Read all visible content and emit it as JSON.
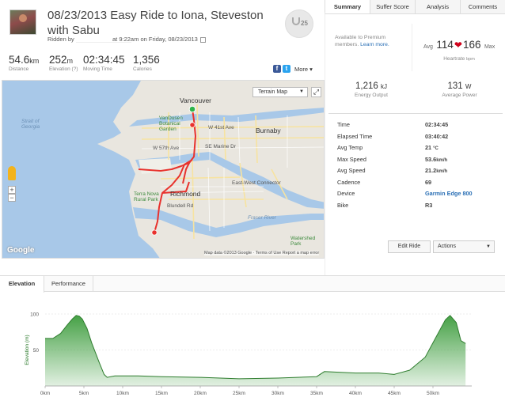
{
  "header": {
    "title": "08/23/2013 Easy Ride to Iona, Steveston with Sabu",
    "ridden_by": "Ridden by",
    "ridden_time": "at 9:22am on Friday, 08/23/2013",
    "trophy_count": "25"
  },
  "stats": [
    {
      "value": "54.6",
      "unit": "km",
      "label": "Distance"
    },
    {
      "value": "252",
      "unit": "m",
      "label": "Elevation (?)"
    },
    {
      "value": "02:34:45",
      "unit": "",
      "label": "Moving Time"
    },
    {
      "value": "1,356",
      "unit": "",
      "label": "Calories"
    }
  ],
  "share": {
    "more_label": "More"
  },
  "map": {
    "type_label": "Terrain Map",
    "logo": "Google",
    "attribution": "Map data ©2013 Google · Terms of Use   Report a map error",
    "labels": {
      "vancouver": "Vancouver",
      "burnaby": "Burnaby",
      "richmond": "Richmond",
      "strait": "Strait of Georgia",
      "vandusen": "VanDusen Botanical Garden",
      "terra_nova": "Terra Nova Rural Park",
      "ave41": "W 41st Ave",
      "ave57": "W 57th Ave",
      "marine": "SE Marine Dr",
      "connector": "East-West Connector",
      "fraser": "Fraser River",
      "blundell": "Blundell Rd",
      "watershed": "Watershed Park"
    },
    "colors": {
      "route": "#e8322d",
      "water": "#a8c8e8",
      "land": "#e9e6df",
      "start": "#2db34a"
    }
  },
  "right_tabs": [
    {
      "label": "Summary",
      "active": true
    },
    {
      "label": "Suffer Score",
      "active": false
    },
    {
      "label": "Analysis",
      "active": false
    },
    {
      "label": "Comments",
      "active": false
    }
  ],
  "premium": {
    "text": "Available to Premium members.",
    "link": "Learn more."
  },
  "heartrate": {
    "avg_label": "Avg",
    "avg": "114",
    "max": "166",
    "max_label": "Max",
    "label": "Heartrate",
    "unit": "bpm"
  },
  "energy": {
    "value": "1,216",
    "unit": "kJ",
    "label": "Energy Output"
  },
  "power": {
    "value": "131",
    "unit": "W",
    "label": "Average Power"
  },
  "details": [
    {
      "label": "Time",
      "value": "02:34:45",
      "unit": ""
    },
    {
      "label": "Elapsed Time",
      "value": "03:40:42",
      "unit": ""
    },
    {
      "label": "Avg Temp",
      "value": "21",
      "unit": "°C"
    },
    {
      "label": "Max Speed",
      "value": "53.6",
      "unit": "km/h"
    },
    {
      "label": "Avg Speed",
      "value": "21.2",
      "unit": "km/h"
    },
    {
      "label": "Cadence",
      "value": "69",
      "unit": ""
    },
    {
      "label": "Device",
      "value": "Garmin Edge 800",
      "unit": ""
    },
    {
      "label": "Bike",
      "value": "R3",
      "unit": ""
    }
  ],
  "buttons": {
    "edit_ride": "Edit Ride",
    "actions": "Actions"
  },
  "bottom_tabs": [
    {
      "label": "Elevation",
      "active": true
    },
    {
      "label": "Performance",
      "active": false
    }
  ],
  "chart_data": {
    "type": "area",
    "ylabel": "Elevation (m)",
    "ylim": [
      0,
      100
    ],
    "yticks": [
      50,
      100
    ],
    "xlim": [
      0,
      55
    ],
    "xticks": [
      "0km",
      "5km",
      "10km",
      "15km",
      "20km",
      "25km",
      "30km",
      "35km",
      "40km",
      "45km",
      "50km"
    ],
    "x": [
      0,
      1,
      2,
      2.8,
      3.5,
      4,
      4.4,
      4.8,
      5.4,
      6,
      7,
      7.6,
      8,
      9,
      12,
      15,
      20,
      25,
      30,
      35,
      36,
      40,
      43,
      45,
      47,
      49,
      50,
      51,
      51.6,
      52.2,
      53,
      53.6,
      54.2
    ],
    "y": [
      66,
      66,
      73,
      84,
      93,
      98,
      97,
      93,
      80,
      60,
      32,
      16,
      12,
      14,
      14,
      13,
      12,
      10,
      11,
      13,
      20,
      18,
      18,
      16,
      22,
      40,
      60,
      80,
      92,
      98,
      88,
      63,
      59
    ],
    "grid": true,
    "color": "#3c9c3c"
  }
}
